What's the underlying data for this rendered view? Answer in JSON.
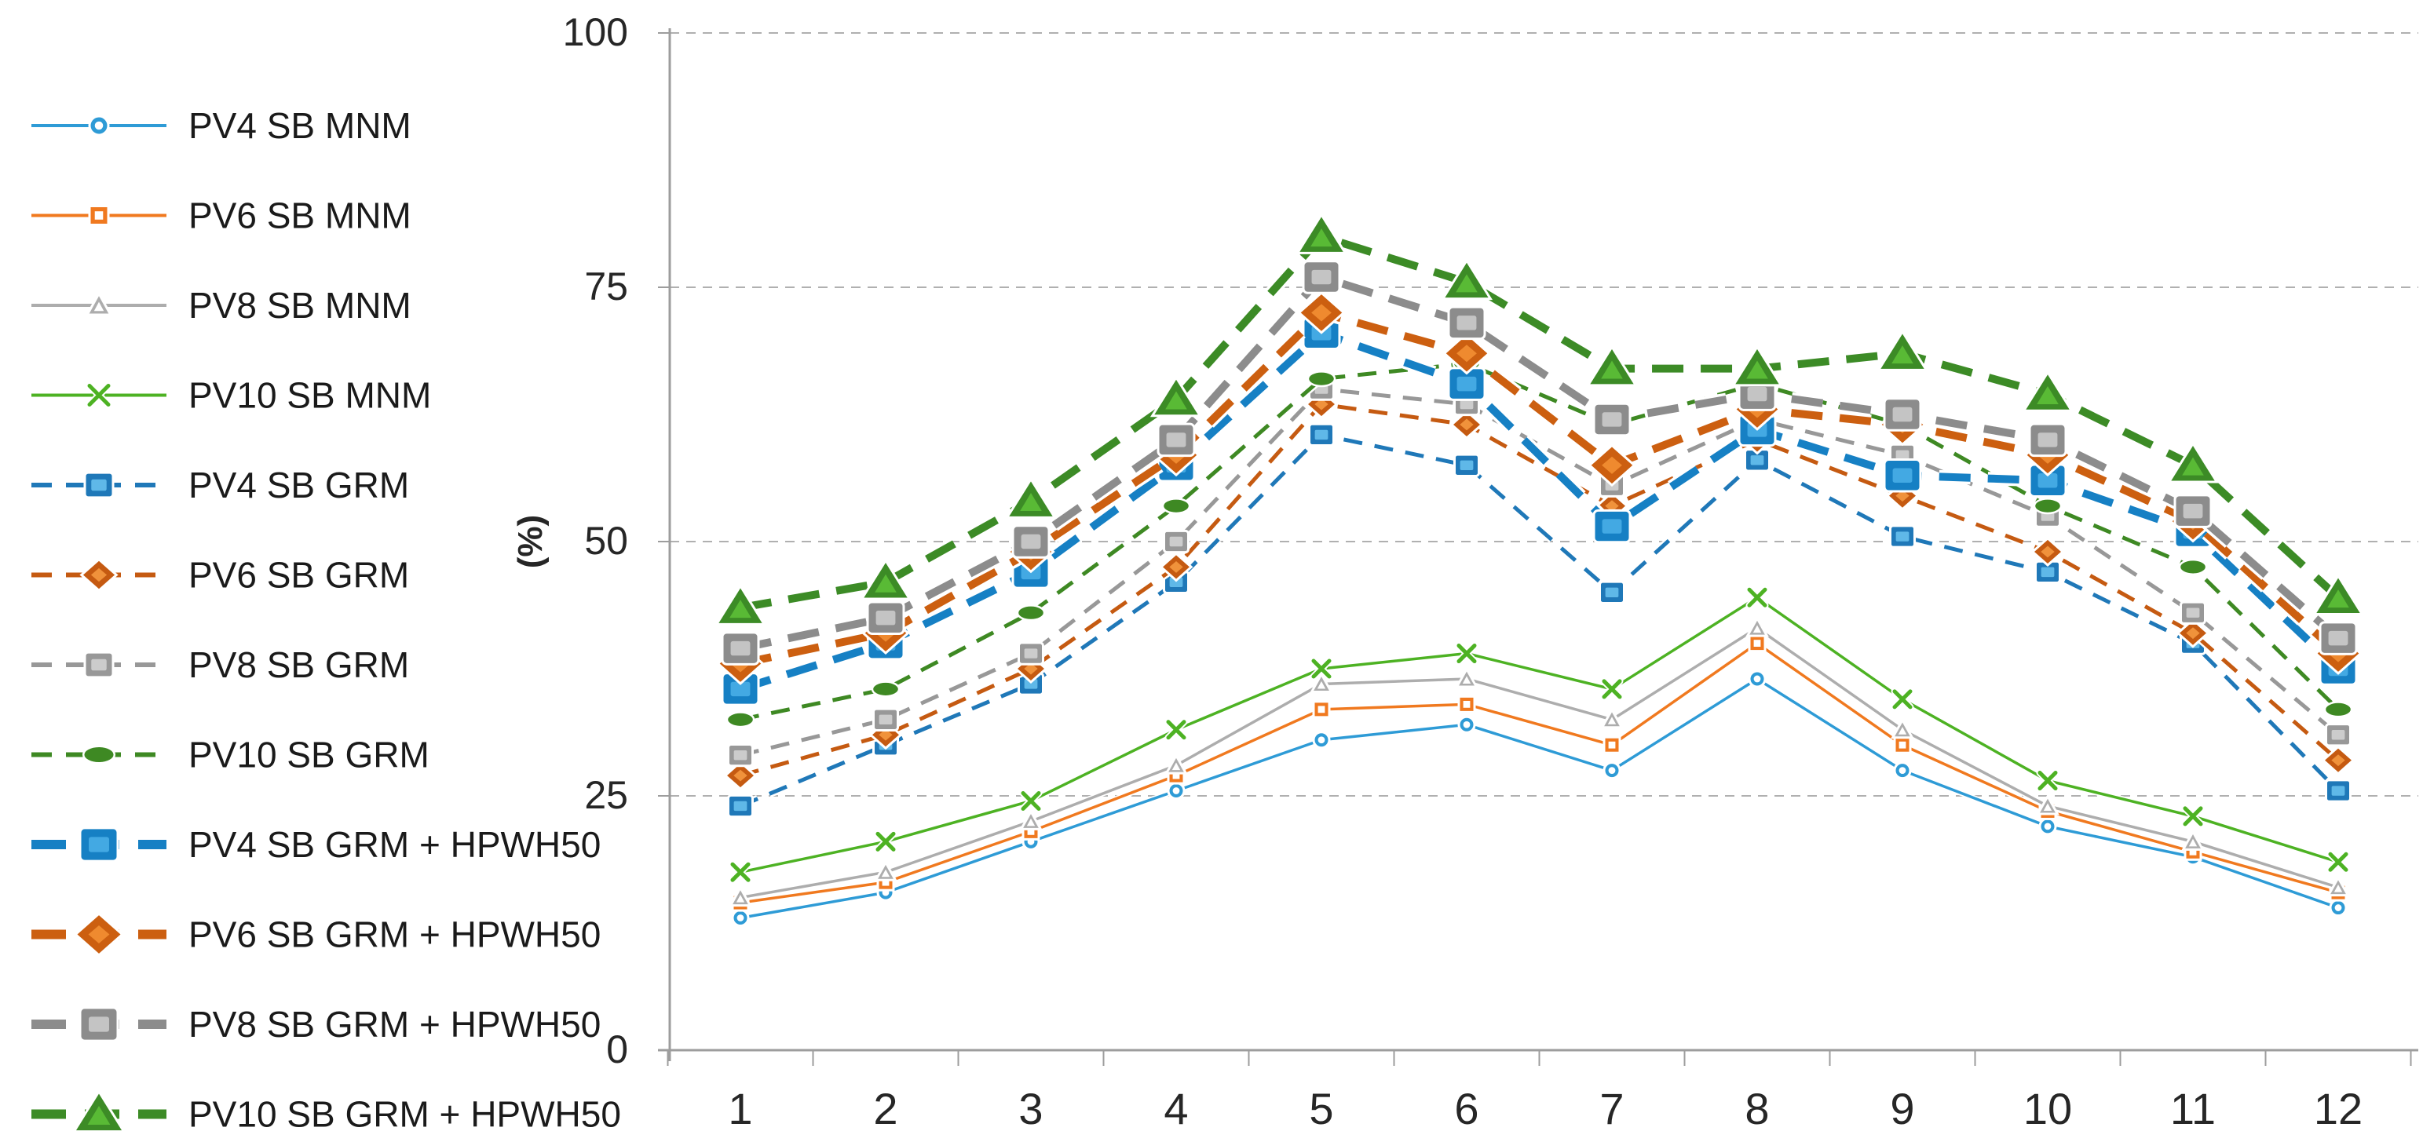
{
  "chart_data": {
    "type": "line",
    "title": "",
    "xlabel": "",
    "ylabel": "(%)",
    "categories": [
      "1",
      "2",
      "3",
      "4",
      "5",
      "6",
      "7",
      "8",
      "9",
      "10",
      "11",
      "12"
    ],
    "ylim": [
      0,
      100
    ],
    "yticks": [
      "0",
      "25",
      "50",
      "75",
      "100"
    ],
    "ytick_values": [
      0,
      25,
      50,
      75,
      100
    ],
    "grid": "horizontal-dashed",
    "legend_position": "left",
    "colors": {
      "axis": "#9d9d9d",
      "gridline": "#b0b0b0",
      "tick_text": "#262626",
      "legend_text": "#1a1a1a"
    },
    "series": [
      {
        "name": "PV4 SB MNM",
        "group": "MNM",
        "style": "solid",
        "marker": "circle-open",
        "color": "#2E9BD6",
        "inner": "#ffffff",
        "values": [
          13,
          15.5,
          20.5,
          25.5,
          30.5,
          32,
          27.5,
          36.5,
          27.5,
          22,
          19,
          14
        ]
      },
      {
        "name": "PV6 SB MNM",
        "group": "MNM",
        "style": "solid",
        "marker": "square-open",
        "color": "#F0791F",
        "inner": "#ffffff",
        "values": [
          14.5,
          16.5,
          21.5,
          27,
          33.5,
          34,
          30,
          40,
          30,
          23.5,
          19.5,
          15.5
        ]
      },
      {
        "name": "PV8 SB MNM",
        "group": "MNM",
        "style": "solid",
        "marker": "triangle-open",
        "color": "#ADADAD",
        "inner": "#ffffff",
        "values": [
          15,
          17.5,
          22.5,
          28,
          36,
          36.5,
          32.5,
          41.5,
          31.5,
          24,
          20.5,
          16
        ]
      },
      {
        "name": "PV10 SB MNM",
        "group": "MNM",
        "style": "solid",
        "marker": "x",
        "color": "#4DB223",
        "inner": "#ffffff",
        "values": [
          17.5,
          20.5,
          24.5,
          31.5,
          37.5,
          39,
          35.5,
          44.5,
          34.5,
          26.5,
          23,
          18.5
        ]
      },
      {
        "name": "PV4 SB GRM",
        "group": "GRM",
        "style": "dash",
        "marker": "square",
        "color": "#1F78B8",
        "inner": "#5FB8E8",
        "values": [
          24,
          30,
          36,
          46,
          60.5,
          57.5,
          45,
          58,
          50.5,
          47,
          40,
          25.5
        ]
      },
      {
        "name": "PV6 SB GRM",
        "group": "GRM",
        "style": "dash",
        "marker": "diamond",
        "color": "#C55A11",
        "inner": "#F0923B",
        "values": [
          27,
          31,
          37.5,
          47.5,
          63.5,
          61.5,
          53.5,
          60,
          54.5,
          49,
          41,
          28.5
        ]
      },
      {
        "name": "PV8 SB GRM",
        "group": "GRM",
        "style": "dash",
        "marker": "square",
        "color": "#989898",
        "inner": "#CCCCCC",
        "values": [
          29,
          32.5,
          39,
          50,
          65,
          63.5,
          55.5,
          62,
          58.5,
          52.5,
          43,
          31
        ]
      },
      {
        "name": "PV10 SB GRM",
        "group": "GRM",
        "style": "dash",
        "marker": "oval",
        "color": "#3E8923",
        "inner": "#3E8923",
        "values": [
          32.5,
          35.5,
          43,
          53.5,
          66,
          67.5,
          61.5,
          65.5,
          61.5,
          53.5,
          47.5,
          33.5
        ]
      },
      {
        "name": "PV4 SB GRM + HPWH50",
        "group": "GRM+HPWH50",
        "style": "dash-thick",
        "marker": "square",
        "color": "#1680C4",
        "inner": "#43A9E3",
        "values": [
          35.5,
          40,
          47,
          57.5,
          70.5,
          65.5,
          51.5,
          61,
          56.5,
          56,
          51,
          37.5
        ]
      },
      {
        "name": "PV6 SB GRM + HPWH50",
        "group": "GRM+HPWH50",
        "style": "dash-thick",
        "marker": "diamond",
        "color": "#CC5F10",
        "inner": "#EF8A2F",
        "values": [
          38,
          41,
          49,
          58.5,
          72.5,
          68.5,
          57.5,
          63,
          61.5,
          58.5,
          52,
          39
        ]
      },
      {
        "name": "PV8 SB GRM + HPWH50",
        "group": "GRM+HPWH50",
        "style": "dash-thick",
        "marker": "square",
        "color": "#8C8C8C",
        "inner": "#C4C4C4",
        "values": [
          39.5,
          42.5,
          50,
          60,
          76,
          71.5,
          62,
          64.5,
          62.5,
          60,
          53,
          40.5
        ]
      },
      {
        "name": "PV10 SB GRM + HPWH50",
        "group": "GRM+HPWH50",
        "style": "dash-thick",
        "marker": "triangle",
        "color": "#3C8B26",
        "inner": "#59BA35",
        "values": [
          43.5,
          46,
          54,
          64,
          80,
          75.5,
          67,
          67,
          68.5,
          64.5,
          57.5,
          44.5
        ]
      }
    ]
  }
}
